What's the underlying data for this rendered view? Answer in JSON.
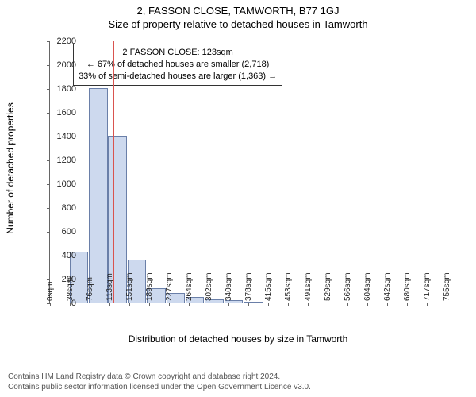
{
  "header": {
    "address": "2, FASSON CLOSE, TAMWORTH, B77 1GJ",
    "subtitle": "Size of property relative to detached houses in Tamworth"
  },
  "chart": {
    "type": "histogram",
    "ylabel": "Number of detached properties",
    "xlabel": "Distribution of detached houses by size in Tamworth",
    "ylim": [
      0,
      2200
    ],
    "ytick_step": 200,
    "xlim_sqm": [
      0,
      774
    ],
    "xtick_labels": [
      "0sqm",
      "38sqm",
      "76sqm",
      "113sqm",
      "151sqm",
      "189sqm",
      "227sqm",
      "264sqm",
      "302sqm",
      "340sqm",
      "378sqm",
      "415sqm",
      "453sqm",
      "491sqm",
      "529sqm",
      "566sqm",
      "604sqm",
      "642sqm",
      "680sqm",
      "717sqm",
      "755sqm"
    ],
    "bars": [
      {
        "x_sqm": 38,
        "width_sqm": 38,
        "value": 430
      },
      {
        "x_sqm": 76,
        "width_sqm": 38,
        "value": 1800
      },
      {
        "x_sqm": 113,
        "width_sqm": 38,
        "value": 1400
      },
      {
        "x_sqm": 151,
        "width_sqm": 38,
        "value": 360
      },
      {
        "x_sqm": 189,
        "width_sqm": 38,
        "value": 120
      },
      {
        "x_sqm": 227,
        "width_sqm": 38,
        "value": 80
      },
      {
        "x_sqm": 264,
        "width_sqm": 38,
        "value": 50
      },
      {
        "x_sqm": 302,
        "width_sqm": 38,
        "value": 30
      },
      {
        "x_sqm": 340,
        "width_sqm": 38,
        "value": 20
      },
      {
        "x_sqm": 378,
        "width_sqm": 38,
        "value": 10
      }
    ],
    "bar_fill": "#cdd9ee",
    "bar_stroke": "#6a7fa8",
    "background_color": "#ffffff",
    "axis_color": "#666666",
    "marker": {
      "x_sqm": 123,
      "color": "#d9534f"
    },
    "callout": {
      "line1": "2 FASSON CLOSE: 123sqm",
      "line2": "← 67% of detached houses are smaller (2,718)",
      "line3": "33% of semi-detached houses are larger (1,363) →",
      "box_left_sqm": 45,
      "box_top_y": 2180,
      "border_color": "#333333"
    }
  },
  "footer": {
    "line1": "Contains HM Land Registry data © Crown copyright and database right 2024.",
    "line2": "Contains public sector information licensed under the Open Government Licence v3.0."
  }
}
